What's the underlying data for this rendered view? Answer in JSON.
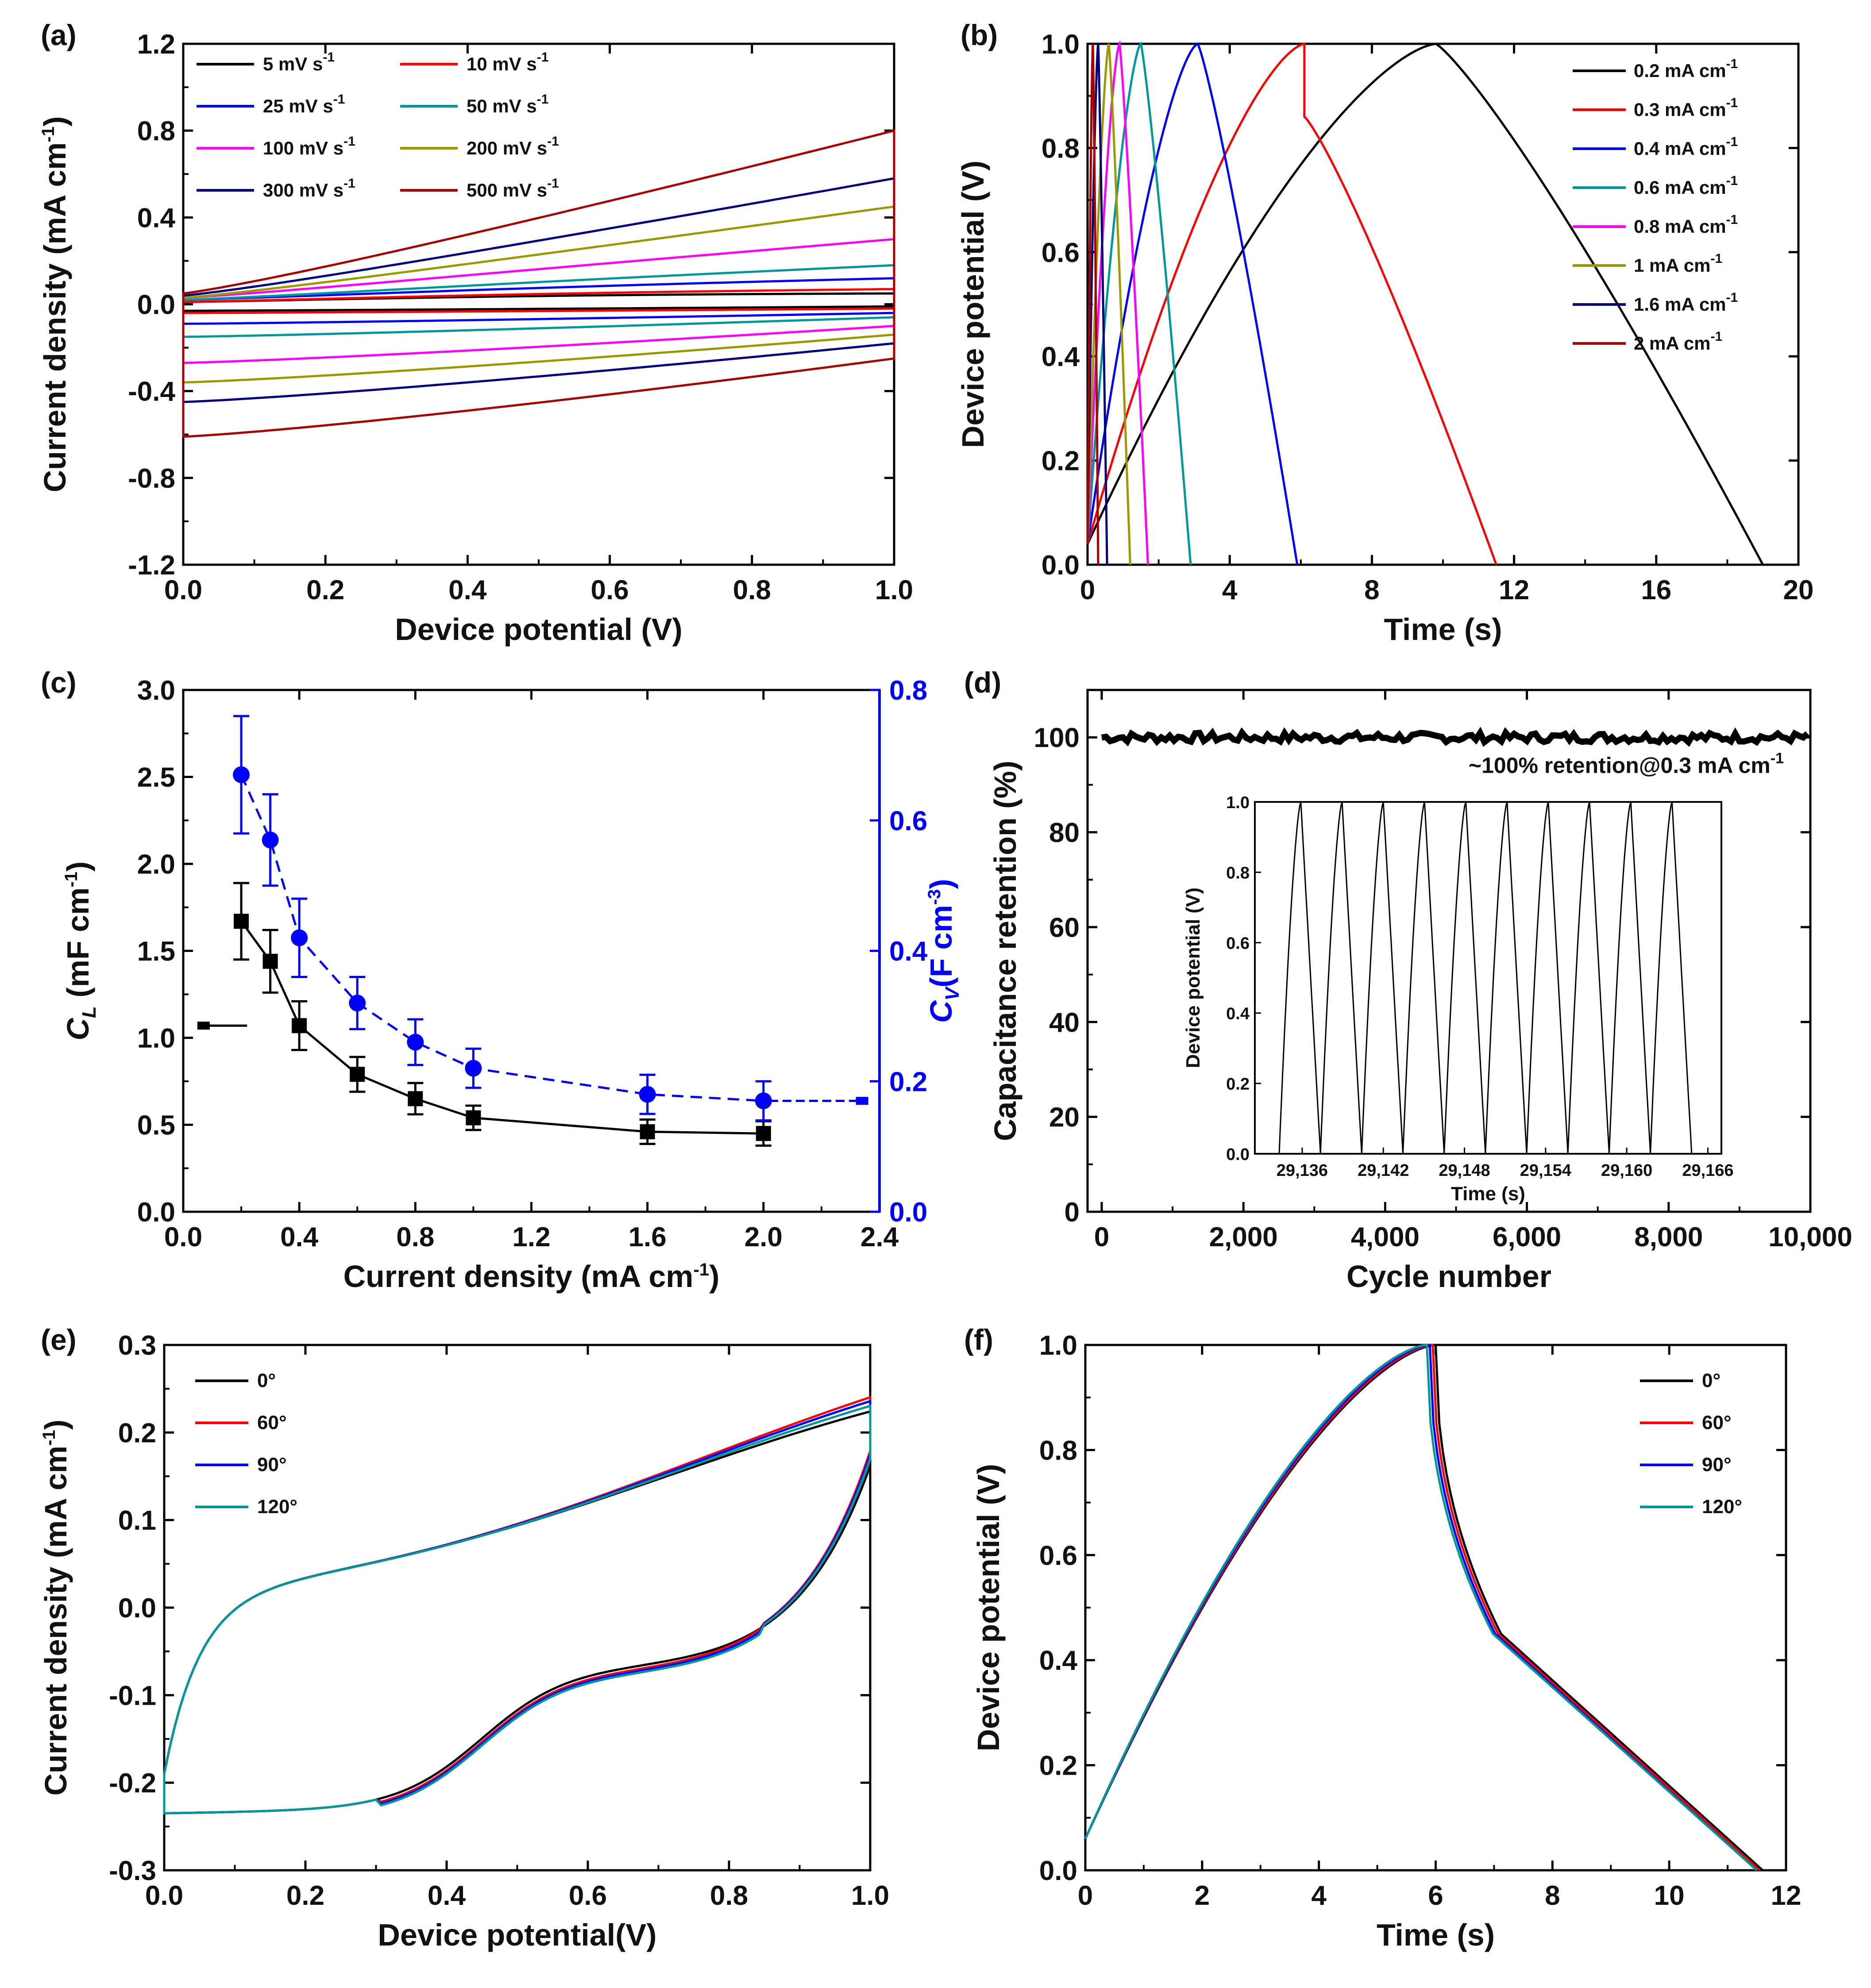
{
  "figure": {
    "panel_labels": [
      "(a)",
      "(b)",
      "(c)",
      "(d)",
      "(e)",
      "(f)"
    ]
  },
  "chart_data": [
    {
      "id": "a",
      "type": "line",
      "xlabel": "Device potential (V)",
      "ylabel": {
        "main": "Current density (mA cm",
        "sup": "-1",
        "tail": ")"
      },
      "xlim": [
        0,
        1.0
      ],
      "ylim": [
        -1.2,
        1.2
      ],
      "xticks": [
        0.0,
        0.2,
        0.4,
        0.6,
        0.8,
        1.0
      ],
      "xtick_labels": [
        "0.0",
        "0.2",
        "0.4",
        "0.6",
        "0.8",
        "1.0"
      ],
      "yticks": [
        -1.2,
        -0.8,
        -0.4,
        0.0,
        0.4,
        0.8,
        1.2
      ],
      "ytick_labels": [
        "-1.2",
        "-0.8",
        "-0.4",
        "0.0",
        "0.4",
        "0.8",
        "1.2"
      ],
      "series": [
        {
          "name": "5 mV s",
          "sup": "-1",
          "color": "#000000",
          "y_up0": 0.01,
          "y_up1": 0.05,
          "y_lo0": -0.03,
          "y_lo1": -0.01
        },
        {
          "name": "10 mV s",
          "sup": "-1",
          "color": "#ff0000",
          "y_up0": 0.01,
          "y_up1": 0.07,
          "y_lo0": -0.04,
          "y_lo1": -0.02
        },
        {
          "name": "25 mV s",
          "sup": "-1",
          "color": "#0000ff",
          "y_up0": 0.02,
          "y_up1": 0.12,
          "y_lo0": -0.09,
          "y_lo1": -0.04
        },
        {
          "name": "50 mV s",
          "sup": "-1",
          "color": "#009999",
          "y_up0": 0.02,
          "y_up1": 0.18,
          "y_lo0": -0.15,
          "y_lo1": -0.06
        },
        {
          "name": "100 mV s",
          "sup": "-1",
          "color": "#ff00ff",
          "y_up0": 0.03,
          "y_up1": 0.3,
          "y_lo0": -0.27,
          "y_lo1": -0.1
        },
        {
          "name": "200 mV s",
          "sup": "-1",
          "color": "#999900",
          "y_up0": 0.03,
          "y_up1": 0.45,
          "y_lo0": -0.36,
          "y_lo1": -0.14
        },
        {
          "name": "300 mV s",
          "sup": "-1",
          "color": "#000080",
          "y_up0": 0.04,
          "y_up1": 0.58,
          "y_lo0": -0.45,
          "y_lo1": -0.18
        },
        {
          "name": "500 mV s",
          "sup": "-1",
          "color": "#aa0000",
          "y_up0": 0.05,
          "y_up1": 0.8,
          "y_lo0": -0.61,
          "y_lo1": -0.25
        }
      ]
    },
    {
      "id": "b",
      "type": "line",
      "xlabel": "Time (s)",
      "ylabel": {
        "main": "Device potential (V)",
        "sup": "",
        "tail": ""
      },
      "xlim": [
        0,
        20
      ],
      "ylim": [
        0,
        1.0
      ],
      "xticks": [
        0,
        4,
        8,
        12,
        16,
        20
      ],
      "xtick_labels": [
        "0",
        "4",
        "8",
        "12",
        "16",
        "20"
      ],
      "yticks": [
        0.0,
        0.2,
        0.4,
        0.6,
        0.8,
        1.0
      ],
      "ytick_labels": [
        "0.0",
        "0.2",
        "0.4",
        "0.6",
        "0.8",
        "1.0"
      ],
      "series": [
        {
          "name": "0.2 mA cm",
          "sup": "-1",
          "color": "#000000",
          "t_charge": 9.8,
          "t_end": 19.0,
          "ir_drop": 0.0
        },
        {
          "name": "0.3 mA cm",
          "sup": "-1",
          "color": "#ff0000",
          "t_charge": 6.1,
          "t_end": 11.5,
          "ir_drop": 0.14
        },
        {
          "name": "0.4 mA cm",
          "sup": "-1",
          "color": "#0000ff",
          "t_charge": 3.1,
          "t_end": 5.9,
          "ir_drop": 0.0
        },
        {
          "name": "0.6 mA cm",
          "sup": "-1",
          "color": "#009999",
          "t_charge": 1.5,
          "t_end": 2.9,
          "ir_drop": 0.0
        },
        {
          "name": "0.8 mA cm",
          "sup": "-1",
          "color": "#ff00ff",
          "t_charge": 0.9,
          "t_end": 1.7,
          "ir_drop": 0.0
        },
        {
          "name": "1 mA cm",
          "sup": "-1",
          "color": "#999900",
          "t_charge": 0.6,
          "t_end": 1.2,
          "ir_drop": 0.0
        },
        {
          "name": "1.6 mA cm",
          "sup": "-1",
          "color": "#000080",
          "t_charge": 0.3,
          "t_end": 0.55,
          "ir_drop": 0.0
        },
        {
          "name": "2 mA cm",
          "sup": "-1",
          "color": "#aa0000",
          "t_charge": 0.15,
          "t_end": 0.3,
          "ir_drop": 0.0
        }
      ]
    },
    {
      "id": "c",
      "type": "line",
      "xlabel": {
        "main": "Current density (mA cm",
        "sup": "-1",
        "tail": ")"
      },
      "ylabel": {
        "var": "C",
        "sub": "L",
        "rest": " (mF cm",
        "sup": "-1",
        "tail": ")"
      },
      "y2label": {
        "var": "C",
        "sub": "V",
        "rest": "(F cm",
        "sup": "-3",
        "tail": ")",
        "color": "#0000ff"
      },
      "xlim": [
        0,
        2.4
      ],
      "ylim": [
        0,
        3.0
      ],
      "y2lim": [
        0,
        0.8
      ],
      "xticks": [
        0.0,
        0.4,
        0.8,
        1.2,
        1.6,
        2.0,
        2.4
      ],
      "xtick_labels": [
        "0.0",
        "0.4",
        "0.8",
        "1.2",
        "1.6",
        "2.0",
        "2.4"
      ],
      "yticks": [
        0.0,
        0.5,
        1.0,
        1.5,
        2.0,
        2.5,
        3.0
      ],
      "ytick_labels": [
        "0.0",
        "0.5",
        "1.0",
        "1.5",
        "2.0",
        "2.5",
        "3.0"
      ],
      "y2ticks": [
        0.0,
        0.2,
        0.4,
        0.6,
        0.8
      ],
      "y2tick_labels": [
        "0.0",
        "0.2",
        "0.4",
        "0.6",
        "0.8"
      ],
      "x": [
        0.2,
        0.3,
        0.4,
        0.6,
        0.8,
        1.0,
        1.6,
        2.0
      ],
      "series": [
        {
          "name": "CL",
          "axis": "left",
          "color": "#000000",
          "marker": "square",
          "values": [
            1.67,
            1.44,
            1.07,
            0.79,
            0.65,
            0.54,
            0.46,
            0.45
          ],
          "errors": [
            0.22,
            0.18,
            0.14,
            0.1,
            0.09,
            0.07,
            0.07,
            0.07
          ],
          "axis_arrow": {
            "from_x": 0.22,
            "to_x": 0.07,
            "y": 1.07
          }
        },
        {
          "name": "CV",
          "axis": "right",
          "color": "#0000ff",
          "marker": "circle",
          "dashed": true,
          "values": [
            0.67,
            0.57,
            0.42,
            0.32,
            0.26,
            0.22,
            0.18,
            0.17
          ],
          "errors": [
            0.09,
            0.07,
            0.06,
            0.04,
            0.035,
            0.03,
            0.03,
            0.03
          ],
          "axis_arrow": {
            "from_x": 2.02,
            "to_x": 2.34,
            "y": 0.17
          }
        }
      ]
    },
    {
      "id": "d",
      "type": "line",
      "xlabel": "Cycle number",
      "ylabel": {
        "main": "Capacitance retention (%)",
        "sup": "",
        "tail": ""
      },
      "xlim": [
        -200,
        10000
      ],
      "ylim": [
        0,
        110
      ],
      "xticks": [
        0,
        2000,
        4000,
        6000,
        8000,
        10000
      ],
      "xtick_labels": [
        "0",
        "2,000",
        "4,000",
        "6,000",
        "8,000",
        "10,000"
      ],
      "yticks": [
        0,
        20,
        40,
        60,
        80,
        100
      ],
      "ytick_labels": [
        "0",
        "20",
        "40",
        "60",
        "80",
        "100"
      ],
      "series": [
        {
          "name": "retention",
          "color": "#000000",
          "mean": 100,
          "jitter": 1.0
        }
      ],
      "annotation": {
        "text": "~100% retention@0.3 mA cm",
        "sup": "-1"
      },
      "inset": {
        "type": "line",
        "xlabel": "Time (s)",
        "ylabel": "Device potential (V)",
        "xlim": [
          29132.5,
          29167
        ],
        "ylim": [
          0,
          1.0
        ],
        "xticks": [
          29136,
          29142,
          29148,
          29154,
          29160,
          29166
        ],
        "xtick_labels": [
          "29,136",
          "29,142",
          "29,148",
          "29,154",
          "29,160",
          "29,166"
        ],
        "yticks": [
          0.0,
          0.2,
          0.4,
          0.6,
          0.8,
          1.0
        ],
        "ytick_labels": [
          "0.0",
          "0.2",
          "0.4",
          "0.6",
          "0.8",
          "1.0"
        ],
        "cycle_start": 29134.3,
        "charge_s": 1.6,
        "period_s": 3.05,
        "cycles": 10,
        "color": "#000000"
      }
    },
    {
      "id": "e",
      "type": "line",
      "xlabel": "Device potential(V)",
      "ylabel": {
        "main": "Current density (mA cm",
        "sup": "-1",
        "tail": ")"
      },
      "xlim": [
        0,
        1.0
      ],
      "ylim": [
        -0.3,
        0.3
      ],
      "xticks": [
        0.0,
        0.2,
        0.4,
        0.6,
        0.8,
        1.0
      ],
      "xtick_labels": [
        "0.0",
        "0.2",
        "0.4",
        "0.6",
        "0.8",
        "1.0"
      ],
      "yticks": [
        -0.3,
        -0.2,
        -0.1,
        0.0,
        0.1,
        0.2,
        0.3
      ],
      "ytick_labels": [
        "-0.3",
        "-0.2",
        "-0.1",
        "0.0",
        "0.1",
        "0.2",
        "0.3"
      ],
      "series": [
        {
          "name": "0°",
          "color": "#000000",
          "end_y": 0.205,
          "shift": 0.0
        },
        {
          "name": "60°",
          "color": "#ff0000",
          "end_y": 0.222,
          "shift": -0.004
        },
        {
          "name": "90°",
          "color": "#0000ff",
          "end_y": 0.218,
          "shift": -0.006
        },
        {
          "name": "120°",
          "color": "#009999",
          "end_y": 0.213,
          "shift": -0.008
        }
      ]
    },
    {
      "id": "f",
      "type": "line",
      "xlabel": "Time (s)",
      "ylabel": {
        "main": "Device potential (V)",
        "sup": "",
        "tail": ""
      },
      "xlim": [
        0,
        12
      ],
      "ylim": [
        0,
        1.0
      ],
      "xticks": [
        0,
        2,
        4,
        6,
        8,
        10,
        12
      ],
      "xtick_labels": [
        "0",
        "2",
        "4",
        "6",
        "8",
        "10",
        "12"
      ],
      "yticks": [
        0.0,
        0.2,
        0.4,
        0.6,
        0.8,
        1.0
      ],
      "ytick_labels": [
        "0.0",
        "0.2",
        "0.4",
        "0.6",
        "0.8",
        "1.0"
      ],
      "series": [
        {
          "name": "0°",
          "color": "#000000",
          "t_charge": 6.0,
          "t_end": 11.6
        },
        {
          "name": "60°",
          "color": "#ff0000",
          "t_charge": 5.95,
          "t_end": 11.55
        },
        {
          "name": "90°",
          "color": "#0000ff",
          "t_charge": 5.9,
          "t_end": 11.5
        },
        {
          "name": "120°",
          "color": "#009999",
          "t_charge": 5.85,
          "t_end": 11.5
        }
      ]
    }
  ]
}
